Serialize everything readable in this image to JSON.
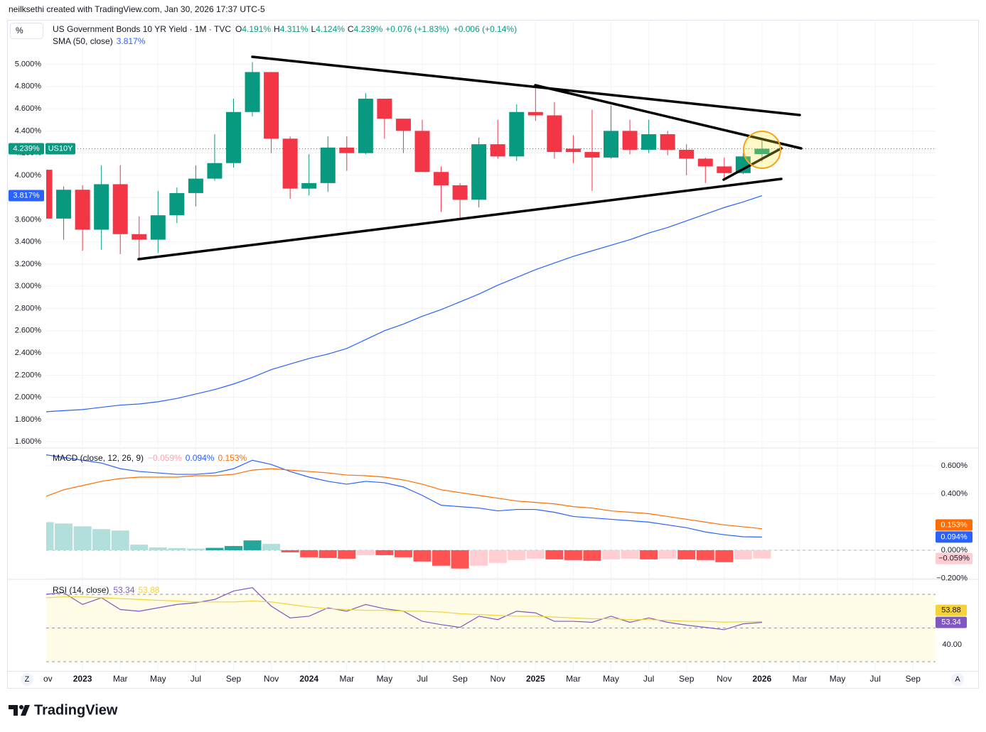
{
  "header": {
    "credit": "neilksethi created with TradingView.com, Jan 30, 2026 17:37 UTC-5"
  },
  "footer": {
    "brand": "TradingView"
  },
  "buttons": [
    "Z",
    "A"
  ],
  "chart_data": [
    {
      "type": "candlestick",
      "unit": "%",
      "title": "US Government Bonds 10 YR Yield · 1M · TVC",
      "legend": [
        {
          "key": "O",
          "label": "4.191%"
        },
        {
          "key": "H",
          "label": "4.311%"
        },
        {
          "key": "L",
          "label": "4.124%"
        },
        {
          "key": "C",
          "label": "4.239%"
        }
      ],
      "change": "+0.076 (+1.83%)",
      "change_ext": "+0.006 (+0.14%)",
      "symbol": "US10Y",
      "up_color": "#089981",
      "down_color": "#f23645",
      "grid": true,
      "categories": [
        "Nov",
        null,
        "2023",
        null,
        "Mar",
        null,
        "May",
        null,
        "Jul",
        null,
        "Sep",
        null,
        "Nov",
        null,
        "2024",
        null,
        "Mar",
        null,
        "May",
        null,
        "Jul",
        null,
        "Sep",
        null,
        "Nov",
        null,
        "2025",
        null,
        "Mar",
        null,
        "May",
        null,
        "Jul",
        null,
        "Sep",
        null,
        "Nov",
        null,
        "2026",
        null,
        "Mar",
        null,
        "May",
        null,
        "Jul",
        null,
        "Sep"
      ],
      "open": [
        4.05,
        3.61,
        3.87,
        3.51,
        3.92,
        3.47,
        3.42,
        3.64,
        3.84,
        3.97,
        4.11,
        4.57,
        4.93,
        4.33,
        3.88,
        3.93,
        4.25,
        4.2,
        4.69,
        4.51,
        4.4,
        4.03,
        3.91,
        3.78,
        4.28,
        4.17,
        4.57,
        4.54,
        4.24,
        4.21,
        4.16,
        4.4,
        4.23,
        4.37,
        4.23,
        4.15,
        4.08,
        4.02,
        4.191,
        null,
        null,
        null,
        null,
        null,
        null,
        null,
        null
      ],
      "high": [
        4.24,
        3.9,
        3.91,
        4.09,
        4.09,
        3.63,
        3.86,
        3.89,
        4.09,
        4.37,
        4.69,
        5.02,
        4.93,
        4.35,
        4.19,
        4.35,
        4.35,
        4.74,
        4.69,
        4.51,
        4.5,
        4.08,
        3.93,
        4.34,
        4.5,
        4.64,
        4.81,
        4.66,
        4.36,
        4.59,
        4.63,
        4.5,
        4.5,
        4.4,
        4.28,
        4.16,
        4.16,
        4.2,
        4.311,
        null,
        null,
        null,
        null,
        null,
        null,
        null,
        null
      ],
      "low": [
        3.61,
        3.42,
        3.32,
        3.33,
        3.29,
        3.25,
        3.3,
        3.57,
        3.72,
        3.95,
        4.07,
        4.53,
        4.2,
        3.79,
        3.82,
        3.85,
        4.04,
        4.19,
        4.33,
        4.2,
        4.03,
        3.67,
        3.6,
        3.71,
        4.15,
        4.13,
        4.49,
        4.15,
        4.11,
        3.86,
        4.15,
        4.19,
        4.2,
        4.18,
        4.0,
        3.93,
        3.97,
        4.01,
        4.124,
        null,
        null,
        null,
        null,
        null,
        null,
        null,
        null
      ],
      "close": [
        3.61,
        3.87,
        3.51,
        3.92,
        3.47,
        3.42,
        3.64,
        3.84,
        3.97,
        4.11,
        4.57,
        4.93,
        4.33,
        3.88,
        3.93,
        4.25,
        4.2,
        4.69,
        4.51,
        4.4,
        4.03,
        3.91,
        3.78,
        4.28,
        4.17,
        4.57,
        4.54,
        4.21,
        4.21,
        4.16,
        4.4,
        4.23,
        4.37,
        4.23,
        4.15,
        4.08,
        4.02,
        4.17,
        4.239,
        null,
        null,
        null,
        null,
        null,
        null,
        null,
        null
      ],
      "series": [
        {
          "name": "SMA (50, close)",
          "color": "#2962ff",
          "value_label": "3.817%",
          "values": [
            1.87,
            1.88,
            1.89,
            1.91,
            1.93,
            1.94,
            1.96,
            1.99,
            2.03,
            2.07,
            2.12,
            2.18,
            2.25,
            2.3,
            2.35,
            2.39,
            2.44,
            2.52,
            2.6,
            2.66,
            2.73,
            2.79,
            2.86,
            2.93,
            3.01,
            3.08,
            3.15,
            3.21,
            3.27,
            3.32,
            3.37,
            3.42,
            3.48,
            3.53,
            3.59,
            3.65,
            3.71,
            3.76,
            3.817,
            null,
            null,
            null,
            null,
            null,
            null,
            null,
            null
          ]
        }
      ],
      "ylim": [
        1.55,
        5.4
      ],
      "yticks": [
        {
          "value": 5.0,
          "label": "5.000%"
        },
        {
          "value": 4.8,
          "label": "4.800%"
        },
        {
          "value": 4.6,
          "label": "4.600%"
        },
        {
          "value": 4.4,
          "label": "4.400%"
        },
        {
          "value": 4.2,
          "label": "4.200%"
        },
        {
          "value": 4.0,
          "label": "4.000%"
        },
        {
          "value": 3.8,
          "label": "3.800%"
        },
        {
          "value": 3.6,
          "label": "3.600%"
        },
        {
          "value": 3.4,
          "label": "3.400%"
        },
        {
          "value": 3.2,
          "label": "3.200%"
        },
        {
          "value": 3.0,
          "label": "3.000%"
        },
        {
          "value": 2.8,
          "label": "2.800%"
        },
        {
          "value": 2.6,
          "label": "2.600%"
        },
        {
          "value": 2.4,
          "label": "2.400%"
        },
        {
          "value": 2.2,
          "label": "2.200%"
        },
        {
          "value": 2.0,
          "label": "2.000%"
        },
        {
          "value": 1.8,
          "label": "1.800%"
        },
        {
          "value": 1.6,
          "label": "1.600%"
        }
      ]
    },
    {
      "type": "macd",
      "title": "MACD (close, 12, 26, 9)",
      "grid": true,
      "zero_line": true,
      "series": [
        {
          "colors": [
            "#26a69a",
            "#b2dfdb",
            "#ff5252",
            "#ffcdd2"
          ],
          "legend_color": "#f7a4ad",
          "value_label": "−0.059%",
          "values": [
            0.2,
            0.19,
            0.17,
            0.15,
            0.14,
            0.04,
            0.02,
            0.015,
            0.012,
            0.017,
            0.03,
            0.07,
            0.045,
            -0.015,
            -0.05,
            -0.055,
            -0.06,
            -0.035,
            -0.035,
            -0.05,
            -0.08,
            -0.11,
            -0.13,
            -0.11,
            -0.09,
            -0.07,
            -0.06,
            -0.065,
            -0.07,
            -0.075,
            -0.065,
            -0.06,
            -0.065,
            -0.06,
            -0.065,
            -0.07,
            -0.085,
            -0.065,
            -0.059,
            null,
            null,
            null,
            null,
            null,
            null,
            null,
            null
          ]
        },
        {
          "color": "#2962ff",
          "value_label": "0.094%",
          "values": [
            0.68,
            0.66,
            0.64,
            0.62,
            0.58,
            0.56,
            0.55,
            0.54,
            0.54,
            0.55,
            0.58,
            0.64,
            0.61,
            0.56,
            0.52,
            0.49,
            0.47,
            0.49,
            0.48,
            0.45,
            0.39,
            0.32,
            0.31,
            0.3,
            0.28,
            0.29,
            0.29,
            0.27,
            0.24,
            0.23,
            0.22,
            0.21,
            0.2,
            0.18,
            0.16,
            0.13,
            0.11,
            0.096,
            0.094,
            null,
            null,
            null,
            null,
            null,
            null,
            null,
            null
          ]
        },
        {
          "color": "#ff6d00",
          "value_label": "0.153%",
          "values": [
            0.38,
            0.43,
            0.46,
            0.49,
            0.51,
            0.52,
            0.52,
            0.52,
            0.53,
            0.53,
            0.54,
            0.57,
            0.58,
            0.57,
            0.56,
            0.55,
            0.535,
            0.53,
            0.52,
            0.5,
            0.47,
            0.43,
            0.41,
            0.39,
            0.37,
            0.35,
            0.34,
            0.33,
            0.31,
            0.3,
            0.28,
            0.27,
            0.26,
            0.24,
            0.22,
            0.2,
            0.18,
            0.167,
            0.153,
            null,
            null,
            null,
            null,
            null,
            null,
            null,
            null
          ]
        }
      ],
      "ylim": [
        -0.202,
        0.722
      ],
      "yticks": [
        {
          "value": 0.6,
          "label": "0.600%"
        },
        {
          "value": 0.4,
          "label": "0.400%"
        },
        {
          "value": 0,
          "label": "0.000%"
        },
        {
          "value": -0.2,
          "label": "−0.200%"
        }
      ]
    },
    {
      "type": "rsi",
      "title": "RSI (14, close)",
      "band_color": "#fffde7",
      "levels": [
        70,
        50,
        30
      ],
      "series": [
        {
          "color": "#7e57c2",
          "values": [
            70,
            71,
            64,
            68,
            61,
            60,
            62,
            64,
            65,
            67,
            72,
            74,
            63,
            56,
            57,
            62,
            60,
            64,
            61.5,
            60,
            54,
            52,
            50.4,
            57,
            55,
            60,
            59,
            54,
            54,
            53.4,
            57,
            53.4,
            56,
            53.4,
            51.7,
            50.4,
            49,
            52.5,
            53.34,
            null,
            null,
            null,
            null,
            null,
            null,
            null,
            null
          ]
        },
        {
          "color": "#f5d13a",
          "values": [
            68,
            68.5,
            68.5,
            68,
            67.5,
            67,
            66.5,
            66,
            65.5,
            65.5,
            65.5,
            66,
            65.5,
            64,
            62.5,
            61.5,
            61,
            60.5,
            60.5,
            60,
            60,
            59.5,
            58.5,
            58,
            57.5,
            57,
            57,
            56.5,
            56,
            55.5,
            55.5,
            55,
            55,
            54.5,
            54,
            54,
            53.5,
            53.7,
            53.88,
            null,
            null,
            null,
            null,
            null,
            null,
            null,
            null
          ]
        }
      ],
      "ylim": [
        24.5,
        78.5
      ],
      "yticks": [
        {
          "value": 40,
          "label": "40.00"
        }
      ]
    }
  ]
}
